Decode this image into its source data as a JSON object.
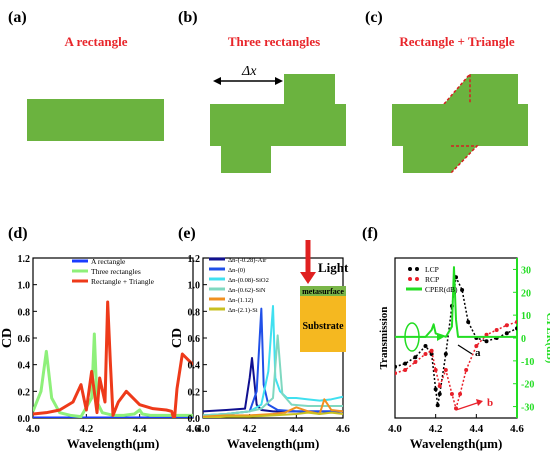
{
  "panels_top": {
    "a": {
      "letter": "(a)",
      "caption": "A rectangle"
    },
    "b": {
      "letter": "(b)",
      "caption": "Three rectangles",
      "dx": "Δx"
    },
    "c": {
      "letter": "(c)",
      "caption": "Rectangle + Triangle"
    }
  },
  "colors": {
    "shape_green": "#6bb33f",
    "caption_red": "#e8262b",
    "triangle_dash": "#d62020"
  },
  "chart_data": [
    {
      "panel": "(d)",
      "type": "line",
      "xlabel": "Wavelength(μm)",
      "ylabel": "CD",
      "xlim": [
        4.0,
        4.6
      ],
      "ylim": [
        0.0,
        1.2
      ],
      "xticks": [
        "4.0",
        "4.2",
        "4.4",
        "4.6"
      ],
      "yticks": [
        "0.0",
        "0.2",
        "0.4",
        "0.6",
        "0.8",
        "1.0",
        "1.2"
      ],
      "series": [
        {
          "name": "A rectangle",
          "color": "#1a3cff",
          "x": [
            4.0,
            4.6
          ],
          "y": [
            0.0,
            0.0
          ]
        },
        {
          "name": "Three rectangles",
          "color": "#8ef07a",
          "x": [
            4.0,
            4.03,
            4.05,
            4.07,
            4.1,
            4.14,
            4.18,
            4.2,
            4.22,
            4.23,
            4.24,
            4.26,
            4.3,
            4.34,
            4.38,
            4.4,
            4.41,
            4.44,
            4.5,
            4.55,
            4.6
          ],
          "y": [
            0.05,
            0.2,
            0.5,
            0.15,
            0.04,
            0.02,
            0.01,
            0.08,
            0.15,
            0.63,
            0.12,
            0.04,
            0.02,
            0.02,
            0.03,
            0.06,
            0.03,
            0.02,
            0.02,
            0.02,
            0.02
          ]
        },
        {
          "name": "Rectangle + Triangle",
          "color": "#ee3a1a",
          "x": [
            4.0,
            4.05,
            4.1,
            4.15,
            4.18,
            4.2,
            4.22,
            4.24,
            4.25,
            4.27,
            4.28,
            4.29,
            4.3,
            4.32,
            4.35,
            4.4,
            4.45,
            4.5,
            4.52,
            4.53,
            4.54,
            4.56,
            4.6
          ],
          "y": [
            0.03,
            0.04,
            0.06,
            0.12,
            0.25,
            0.06,
            0.35,
            0.04,
            0.3,
            0.12,
            0.87,
            0.42,
            0.02,
            0.12,
            0.2,
            0.1,
            0.07,
            0.06,
            0.05,
            -0.02,
            0.22,
            0.48,
            0.4
          ]
        }
      ],
      "legend_position": "top-left"
    },
    {
      "panel": "(e)",
      "type": "line",
      "xlabel": "Wavelength(μm)",
      "ylabel": "CD",
      "xlim": [
        4.0,
        4.6
      ],
      "ylim": [
        0.0,
        1.2
      ],
      "xticks": [
        "4.0",
        "4.2",
        "4.4",
        "4.6"
      ],
      "yticks": [
        "0.0",
        "0.2",
        "0.4",
        "0.6",
        "0.8",
        "1.0",
        "1.2"
      ],
      "inset": {
        "light": "Light",
        "top_layer": "metasurface",
        "bottom_layer": "Substrate"
      },
      "series": [
        {
          "name": "Δn-(-0.28)-Air",
          "color": "#101090",
          "x": [
            4.0,
            4.1,
            4.18,
            4.2,
            4.21,
            4.23,
            4.25,
            4.3,
            4.4,
            4.5,
            4.6
          ],
          "y": [
            0.05,
            0.06,
            0.07,
            0.3,
            0.45,
            0.1,
            0.06,
            0.05,
            0.05,
            0.05,
            0.05
          ]
        },
        {
          "name": "Δn-(0)",
          "color": "#2050e8",
          "x": [
            4.0,
            4.1,
            4.2,
            4.23,
            4.25,
            4.26,
            4.28,
            4.32,
            4.4,
            4.5,
            4.6
          ],
          "y": [
            0.02,
            0.03,
            0.05,
            0.2,
            0.82,
            0.25,
            0.1,
            0.06,
            0.05,
            0.05,
            0.05
          ]
        },
        {
          "name": "Δn-(0.08)-SiO2",
          "color": "#40e0f0",
          "x": [
            4.0,
            4.1,
            4.2,
            4.25,
            4.28,
            4.3,
            4.31,
            4.33,
            4.36,
            4.4,
            4.45,
            4.5,
            4.55,
            4.6
          ],
          "y": [
            0.02,
            0.03,
            0.05,
            0.1,
            0.35,
            0.84,
            0.3,
            0.2,
            0.15,
            0.15,
            0.14,
            0.13,
            0.14,
            0.16
          ]
        },
        {
          "name": "Δn-(0.62)-SiN",
          "color": "#7fd8c0",
          "x": [
            4.0,
            4.1,
            4.2,
            4.25,
            4.3,
            4.32,
            4.34,
            4.38,
            4.45,
            4.5,
            4.55,
            4.6
          ],
          "y": [
            0.02,
            0.03,
            0.05,
            0.07,
            0.15,
            0.62,
            0.18,
            0.1,
            0.09,
            0.09,
            0.09,
            0.09
          ]
        },
        {
          "name": "Δn-(1.12)",
          "color": "#f09020",
          "x": [
            4.0,
            4.1,
            4.2,
            4.3,
            4.35,
            4.4,
            4.45,
            4.5,
            4.52,
            4.55,
            4.6
          ],
          "y": [
            0.01,
            0.02,
            0.02,
            0.03,
            0.04,
            0.08,
            0.05,
            0.03,
            0.14,
            0.06,
            0.05
          ]
        },
        {
          "name": "Δn-(2.1)-Si",
          "color": "#c8c020",
          "x": [
            4.0,
            4.1,
            4.2,
            4.3,
            4.4,
            4.45,
            4.5,
            4.55,
            4.6
          ],
          "y": [
            0.0,
            0.01,
            0.01,
            0.02,
            0.03,
            0.04,
            0.03,
            0.04,
            0.03
          ]
        }
      ],
      "legend_position": "top-left"
    },
    {
      "panel": "(f)",
      "type": "line",
      "xlabel": "Wavelength(μm)",
      "ylabel": "Transmission",
      "ylabel_right": "CPER(dB)",
      "xlim": [
        4.0,
        4.6
      ],
      "ylim": [
        0,
        1
      ],
      "ylim_right": [
        -35,
        35
      ],
      "xticks": [
        "4.0",
        "4.2",
        "4.4",
        "4.6"
      ],
      "yticks_right": [
        "30",
        "20",
        "10",
        "0",
        "-10",
        "-20",
        "-30"
      ],
      "markers": {
        "a": "a",
        "b": "b"
      },
      "series": [
        {
          "name": "LCP",
          "color": "#000000",
          "style": "dots",
          "x": [
            4.0,
            4.05,
            4.1,
            4.15,
            4.18,
            4.2,
            4.21,
            4.22,
            4.25,
            4.28,
            4.3,
            4.33,
            4.36,
            4.4,
            4.45,
            4.5,
            4.55,
            4.6
          ],
          "y": [
            0.32,
            0.34,
            0.38,
            0.45,
            0.4,
            0.18,
            0.08,
            0.15,
            0.4,
            0.7,
            0.88,
            0.8,
            0.6,
            0.5,
            0.48,
            0.5,
            0.53,
            0.56
          ]
        },
        {
          "name": "RCP",
          "color": "#e8202a",
          "style": "dots",
          "x": [
            4.0,
            4.05,
            4.1,
            4.15,
            4.18,
            4.2,
            4.22,
            4.25,
            4.28,
            4.3,
            4.32,
            4.35,
            4.4,
            4.45,
            4.5,
            4.55,
            4.6
          ],
          "y": [
            0.28,
            0.3,
            0.35,
            0.4,
            0.42,
            0.3,
            0.2,
            0.3,
            0.15,
            0.06,
            0.15,
            0.3,
            0.45,
            0.52,
            0.55,
            0.58,
            0.6
          ]
        },
        {
          "name": "CPER(dB)",
          "color": "#22dd22",
          "style": "line",
          "axis": "right",
          "x": [
            4.0,
            4.1,
            4.15,
            4.18,
            4.19,
            4.2,
            4.25,
            4.28,
            4.29,
            4.3,
            4.31,
            4.33,
            4.4,
            4.5,
            4.6
          ],
          "y": [
            0.5,
            0.5,
            0.5,
            3.5,
            6,
            2,
            0.5,
            5,
            31,
            8,
            0.5,
            0.5,
            0.5,
            0.5,
            0.5
          ]
        }
      ],
      "legend_position": "top-left"
    }
  ]
}
